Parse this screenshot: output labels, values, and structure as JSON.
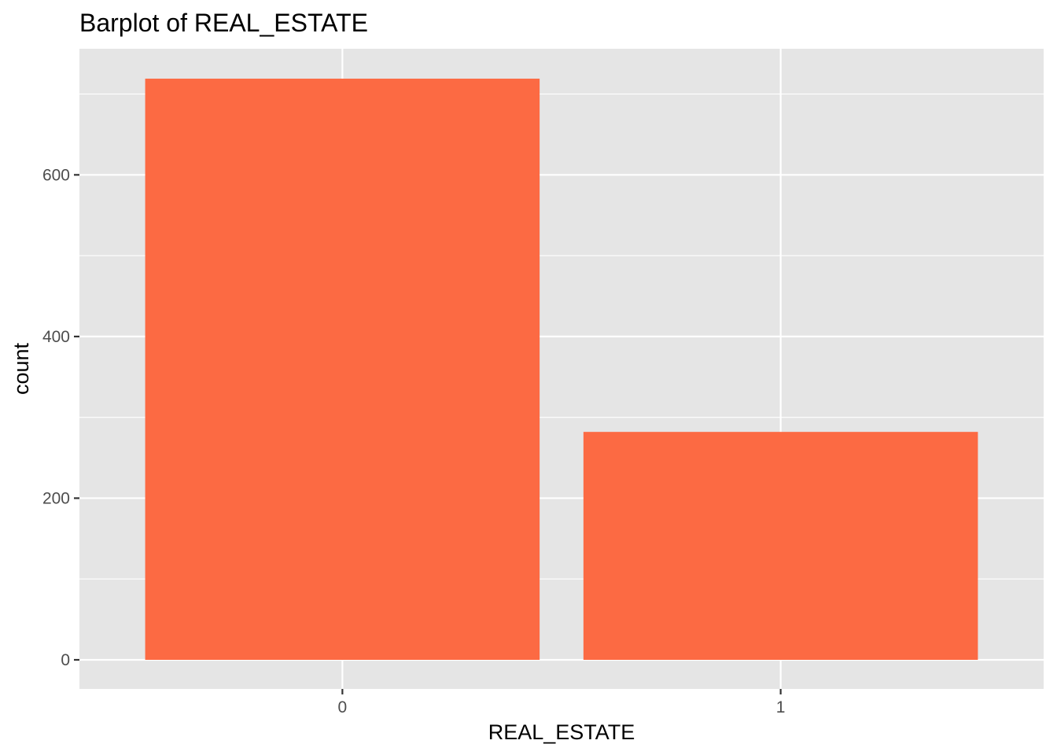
{
  "chart_data": {
    "type": "bar",
    "title": "Barplot of REAL_ESTATE",
    "xlabel": "REAL_ESTATE",
    "ylabel": "count",
    "categories": [
      "0",
      "1"
    ],
    "values": [
      719,
      282
    ],
    "ylim": [
      -36,
      756
    ],
    "yticks": [
      0,
      200,
      400,
      600
    ],
    "ytick_labels": [
      "0",
      "200",
      "400",
      "600"
    ],
    "grid": true,
    "legend": "none"
  },
  "colors": {
    "bar": "#fc6a43",
    "panel_background": "#e5e5e5",
    "grid": "#ffffff",
    "tick_label": "#4d4d4d",
    "tick_mark": "#333333"
  }
}
